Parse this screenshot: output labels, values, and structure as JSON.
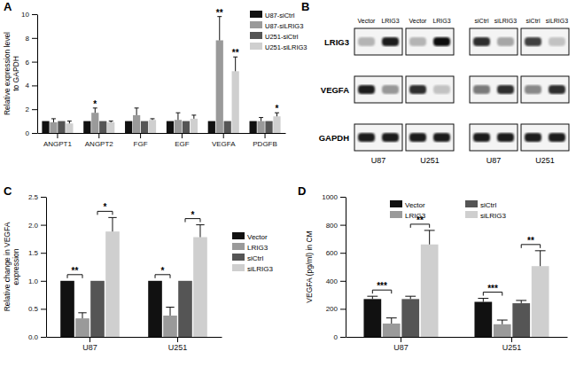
{
  "chart_data": [
    {
      "type": "bar",
      "title": "A",
      "categories": [
        "ANGPT1",
        "ANGPT2",
        "FGF",
        "EGF",
        "VEGFA",
        "PDGFB"
      ],
      "y_label": [
        "Relative expression level",
        "to GAPDH"
      ],
      "ylim": [
        0,
        10
      ],
      "yticks": [
        0,
        2,
        4,
        6,
        8,
        10
      ],
      "grid": false,
      "legend": "upper right",
      "series": [
        {
          "name": "U87-siCtrl",
          "color": "#111111",
          "values": [
            1,
            1,
            1,
            1,
            1,
            1
          ],
          "errors": [
            null,
            null,
            null,
            null,
            null,
            null
          ],
          "significance": [
            null,
            null,
            null,
            null,
            null,
            null
          ]
        },
        {
          "name": "U87-siLRIG3",
          "color": "#9a9a9a",
          "values": [
            0.9,
            1.7,
            1.5,
            1.1,
            7.8,
            1.0
          ],
          "errors": [
            0.3,
            0.4,
            0.6,
            0.6,
            2.0,
            0.3
          ],
          "significance": [
            null,
            "*",
            null,
            null,
            "**",
            null
          ]
        },
        {
          "name": "U251-siCtrl",
          "color": "#555555",
          "values": [
            1,
            1,
            1,
            1,
            1,
            1
          ],
          "errors": [
            null,
            null,
            null,
            null,
            null,
            null
          ],
          "significance": [
            null,
            null,
            null,
            null,
            null,
            null
          ]
        },
        {
          "name": "U251-siLRIG3",
          "color": "#cfcfcf",
          "values": [
            0.8,
            0.9,
            1.1,
            1.2,
            5.2,
            1.4
          ],
          "errors": [
            0.2,
            0.1,
            0.1,
            0.3,
            1.2,
            0.3
          ],
          "significance": [
            null,
            null,
            null,
            null,
            "**",
            "*"
          ]
        }
      ]
    },
    {
      "type": "bar",
      "title": "C",
      "categories": [
        "U87",
        "U251"
      ],
      "y_label": [
        "Relative change in VEGFA",
        "expression"
      ],
      "ylim": [
        0,
        2.5
      ],
      "yticks": [
        {
          "value": 0,
          "label": "0.0"
        },
        {
          "value": 0.5,
          "label": "0.5"
        },
        {
          "value": 1,
          "label": "1.0"
        },
        {
          "value": 1.5,
          "label": "1.5"
        },
        {
          "value": 2,
          "label": "2.0"
        },
        {
          "value": 2.5,
          "label": "2.5"
        }
      ],
      "grid": false,
      "legend": "right",
      "series": [
        {
          "name": "Vector",
          "color": "#111111",
          "values": [
            1,
            1
          ],
          "errors": [
            null,
            null
          ]
        },
        {
          "name": "LRIG3",
          "color": "#9a9a9a",
          "values": [
            0.33,
            0.38
          ],
          "errors": [
            0.1,
            0.15
          ]
        },
        {
          "name": "siCtrl",
          "color": "#555555",
          "values": [
            1,
            1
          ],
          "errors": [
            null,
            null
          ]
        },
        {
          "name": "siLRIG3",
          "color": "#cfcfcf",
          "values": [
            1.88,
            1.78
          ],
          "errors": [
            0.25,
            0.22
          ]
        }
      ],
      "comparisons": [
        {
          "category": "U87",
          "series": [
            "Vector",
            "LRIG3"
          ],
          "text": "**"
        },
        {
          "category": "U87",
          "series": [
            "siCtrl",
            "siLRIG3"
          ],
          "text": "*"
        },
        {
          "category": "U251",
          "series": [
            "Vector",
            "LRIG3"
          ],
          "text": "*"
        },
        {
          "category": "U251",
          "series": [
            "siCtrl",
            "siLRIG3"
          ],
          "text": "*"
        }
      ]
    },
    {
      "type": "bar",
      "title": "D",
      "categories": [
        "U87",
        "U251"
      ],
      "y_label": [
        "VEGFA (pg/ml) in CM"
      ],
      "ylim": [
        0,
        1000
      ],
      "yticks": [
        0,
        200,
        400,
        600,
        800,
        1000
      ],
      "grid": false,
      "legend": "upper center",
      "series": [
        {
          "name": "Vector",
          "color": "#111111",
          "values": [
            270,
            250
          ],
          "errors": [
            20,
            25
          ]
        },
        {
          "name": "LRIG3",
          "color": "#9a9a9a",
          "values": [
            95,
            90
          ],
          "errors": [
            40,
            30
          ]
        },
        {
          "name": "siCtrl",
          "color": "#555555",
          "values": [
            270,
            240
          ],
          "errors": [
            20,
            20
          ]
        },
        {
          "name": "siLRIG3",
          "color": "#cfcfcf",
          "values": [
            660,
            505
          ],
          "errors": [
            100,
            110
          ]
        }
      ],
      "comparisons": [
        {
          "category": "U87",
          "series": [
            "Vector",
            "LRIG3"
          ],
          "text": "***"
        },
        {
          "category": "U87",
          "series": [
            "siCtrl",
            "siLRIG3"
          ],
          "text": "**"
        },
        {
          "category": "U251",
          "series": [
            "Vector",
            "LRIG3"
          ],
          "text": "***"
        },
        {
          "category": "U251",
          "series": [
            "siCtrl",
            "siLRIG3"
          ],
          "text": "**"
        }
      ]
    }
  ],
  "blot": {
    "title": "B",
    "row_labels": [
      "LRIG3",
      "VEGFA",
      "GAPDH"
    ],
    "panels": [
      {
        "lanes": [
          "Vector",
          "LRIG3"
        ],
        "cell_line": "U87",
        "band_intensity": [
          [
            0.4,
            0.9
          ],
          [
            0.9,
            0.5
          ],
          [
            0.9,
            0.9
          ]
        ]
      },
      {
        "lanes": [
          "Vector",
          "LRIG3"
        ],
        "cell_line": "U251",
        "band_intensity": [
          [
            0.4,
            0.95
          ],
          [
            0.85,
            0.35
          ],
          [
            0.9,
            0.9
          ]
        ]
      },
      {
        "lanes": [
          "siCtrl",
          "siLRIG3"
        ],
        "cell_line": "U87",
        "band_intensity": [
          [
            0.85,
            0.45
          ],
          [
            0.6,
            0.85
          ],
          [
            0.9,
            0.9
          ]
        ]
      },
      {
        "lanes": [
          "siCtrl",
          "siLRIG3"
        ],
        "cell_line": "U251",
        "band_intensity": [
          [
            0.8,
            0.35
          ],
          [
            0.55,
            0.85
          ],
          [
            0.9,
            0.9
          ]
        ]
      }
    ]
  }
}
